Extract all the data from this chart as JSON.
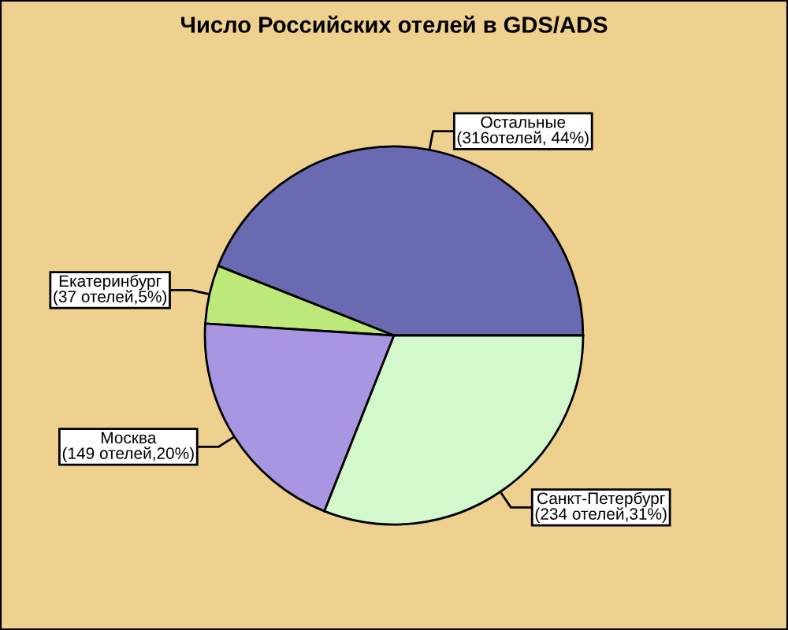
{
  "chart_data": {
    "type": "pie",
    "title": "Число Российских отелей в GDS/ADS",
    "categories": [
      "Остальные",
      "Екатеринбург",
      "Москва",
      "Санкт-Петербург"
    ],
    "values": [
      44,
      5,
      20,
      31
    ],
    "colors": [
      "#6a6ab2",
      "#bde87a",
      "#a896e2",
      "#d2f8cc"
    ],
    "value_labels": [
      "(316отелей, 44%)",
      "(37 отелей,5%)",
      "(149 отелей,20%)",
      "(234 отелей,31%)"
    ]
  }
}
